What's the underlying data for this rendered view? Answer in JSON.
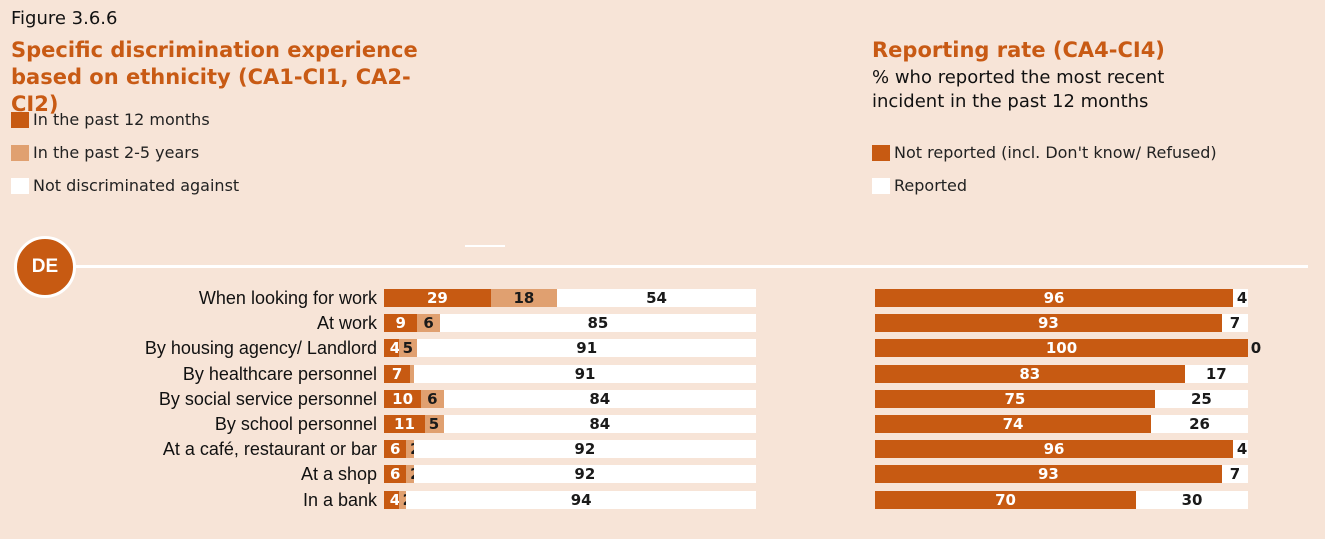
{
  "chart_data": [
    {
      "type": "bar",
      "stacked": true,
      "orientation": "horizontal",
      "figure_label": "Figure 3.6.6",
      "title": "Specific discrimination experience based on ethnicity (CA1-CI1, CA2-CI2)",
      "badge": "DE",
      "categories": [
        "When looking for work",
        "At work",
        "By housing agency/ Landlord",
        "By healthcare personnel",
        "By social service personnel",
        "By school personnel",
        "At a café, restaurant or bar",
        "At a shop",
        "In a bank"
      ],
      "series": [
        {
          "name": "In the past 12 months",
          "color": "#C75A12",
          "values": [
            29,
            9,
            4,
            7,
            10,
            11,
            6,
            6,
            4
          ]
        },
        {
          "name": "In the past 2-5 years",
          "color": "#E0A070",
          "values": [
            18,
            6,
            5,
            1,
            6,
            5,
            2,
            2,
            2
          ]
        },
        {
          "name": "Not discriminated against",
          "color": "#FFFFFF",
          "values": [
            54,
            85,
            91,
            91,
            84,
            84,
            92,
            92,
            94
          ]
        }
      ],
      "legend_placement": "top-left",
      "grid": false
    },
    {
      "type": "bar",
      "stacked": true,
      "orientation": "horizontal",
      "title": "Reporting rate (CA4-CI4)",
      "subtitle": "% who reported the most recent incident in the past 12 months",
      "categories": [
        "When looking for work",
        "At work",
        "By housing agency/ Landlord",
        "By healthcare personnel",
        "By social service personnel",
        "By school personnel",
        "At a café, restaurant or bar",
        "At a shop",
        "In a bank"
      ],
      "series": [
        {
          "name": "Not reported (incl. Don't know/ Refused)",
          "color": "#C75A12",
          "values": [
            96,
            93,
            100,
            83,
            75,
            74,
            96,
            93,
            70
          ]
        },
        {
          "name": "Reported",
          "color": "#FFFFFF",
          "values": [
            4,
            7,
            0,
            17,
            25,
            26,
            4,
            7,
            30
          ]
        }
      ],
      "legend_placement": "top-right",
      "grid": false
    }
  ]
}
